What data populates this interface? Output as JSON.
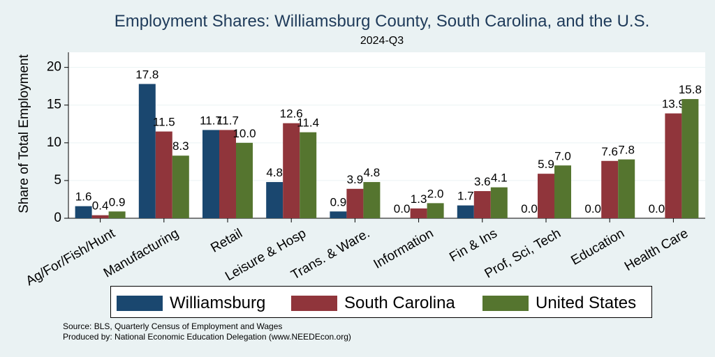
{
  "chart_data": {
    "type": "bar",
    "title": "Employment Shares: Williamsburg County, South Carolina, and the U.S.",
    "subtitle": "2024-Q3",
    "ylabel": "Share of Total Employment",
    "xlabel": "",
    "ylim": [
      0,
      22
    ],
    "yticks": [
      "0",
      "5",
      "10",
      "15",
      "20"
    ],
    "grid": true,
    "legend_position": "bottom",
    "categories": [
      "Ag/For/Fish/Hunt",
      "Manufacturing",
      "Retail",
      "Leisure & Hosp",
      "Trans. & Ware.",
      "Information",
      "Fin & Ins",
      "Prof, Sci, Tech",
      "Education",
      "Health Care"
    ],
    "series": [
      {
        "name": "Williamsburg",
        "color": "#1a476f",
        "values": [
          1.6,
          17.8,
          11.7,
          4.8,
          0.9,
          0.0,
          1.7,
          0.0,
          0.0,
          0.0
        ],
        "labels": [
          "1.6",
          "17.8",
          "11.7",
          "4.8",
          "0.9",
          "0.0",
          "1.7",
          "0.0",
          "0.0",
          "0.0"
        ]
      },
      {
        "name": "South Carolina",
        "color": "#90353b",
        "values": [
          0.4,
          11.5,
          11.7,
          12.6,
          3.9,
          1.3,
          3.6,
          5.9,
          7.6,
          13.9
        ],
        "labels": [
          "0.4",
          "11.5",
          "11.7",
          "12.6",
          "3.9",
          "1.3",
          "3.6",
          "5.9",
          "7.6",
          "13.9"
        ]
      },
      {
        "name": "United States",
        "color": "#55752f",
        "values": [
          0.9,
          8.3,
          10.0,
          11.4,
          4.8,
          2.0,
          4.1,
          7.0,
          7.8,
          15.8
        ],
        "labels": [
          "0.9",
          "8.3",
          "10.0",
          "11.4",
          "4.8",
          "2.0",
          "4.1",
          "7.0",
          "7.8",
          "15.8"
        ]
      }
    ]
  },
  "notes": {
    "source": "Source: BLS, Quarterly Census of Employment and Wages",
    "produced": "Produced by: National Economic Education Delegation (www.NEEDEcon.org)"
  }
}
